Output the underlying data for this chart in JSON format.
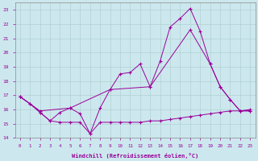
{
  "xlabel": "Windchill (Refroidissement éolien,°C)",
  "bg_color": "#cce8ee",
  "line_color": "#990099",
  "xlim": [
    -0.5,
    23.5
  ],
  "ylim": [
    14,
    23.5
  ],
  "yticks": [
    14,
    15,
    16,
    17,
    18,
    19,
    20,
    21,
    22,
    23
  ],
  "xticks": [
    0,
    1,
    2,
    3,
    4,
    5,
    6,
    7,
    8,
    9,
    10,
    11,
    12,
    13,
    14,
    15,
    16,
    17,
    18,
    19,
    20,
    21,
    22,
    23
  ],
  "series1_x": [
    0,
    1,
    2,
    3,
    4,
    5,
    6,
    7,
    8,
    9,
    10,
    11,
    12,
    13,
    14,
    15,
    16,
    17,
    18,
    19,
    20,
    21,
    22,
    23
  ],
  "series1_y": [
    16.9,
    16.4,
    15.8,
    15.2,
    15.1,
    15.1,
    15.1,
    14.3,
    15.1,
    15.1,
    15.1,
    15.1,
    15.1,
    15.2,
    15.2,
    15.3,
    15.4,
    15.5,
    15.6,
    15.7,
    15.8,
    15.9,
    15.9,
    16.0
  ],
  "series2_x": [
    0,
    1,
    2,
    3,
    4,
    5,
    6,
    7,
    8,
    9,
    10,
    11,
    12,
    13,
    14,
    15,
    16,
    17,
    18,
    19,
    20,
    21,
    22,
    23
  ],
  "series2_y": [
    16.9,
    16.4,
    15.8,
    15.2,
    15.8,
    16.1,
    15.7,
    14.3,
    16.1,
    17.4,
    18.5,
    18.6,
    19.2,
    17.6,
    19.4,
    21.8,
    22.4,
    23.1,
    21.5,
    19.2,
    17.6,
    16.7,
    15.9,
    15.9
  ],
  "series3_x": [
    0,
    2,
    5,
    9,
    13,
    17,
    19,
    20,
    21,
    22,
    23
  ],
  "series3_y": [
    16.9,
    15.9,
    16.1,
    17.4,
    17.6,
    21.6,
    19.2,
    17.6,
    16.7,
    15.9,
    15.9
  ]
}
